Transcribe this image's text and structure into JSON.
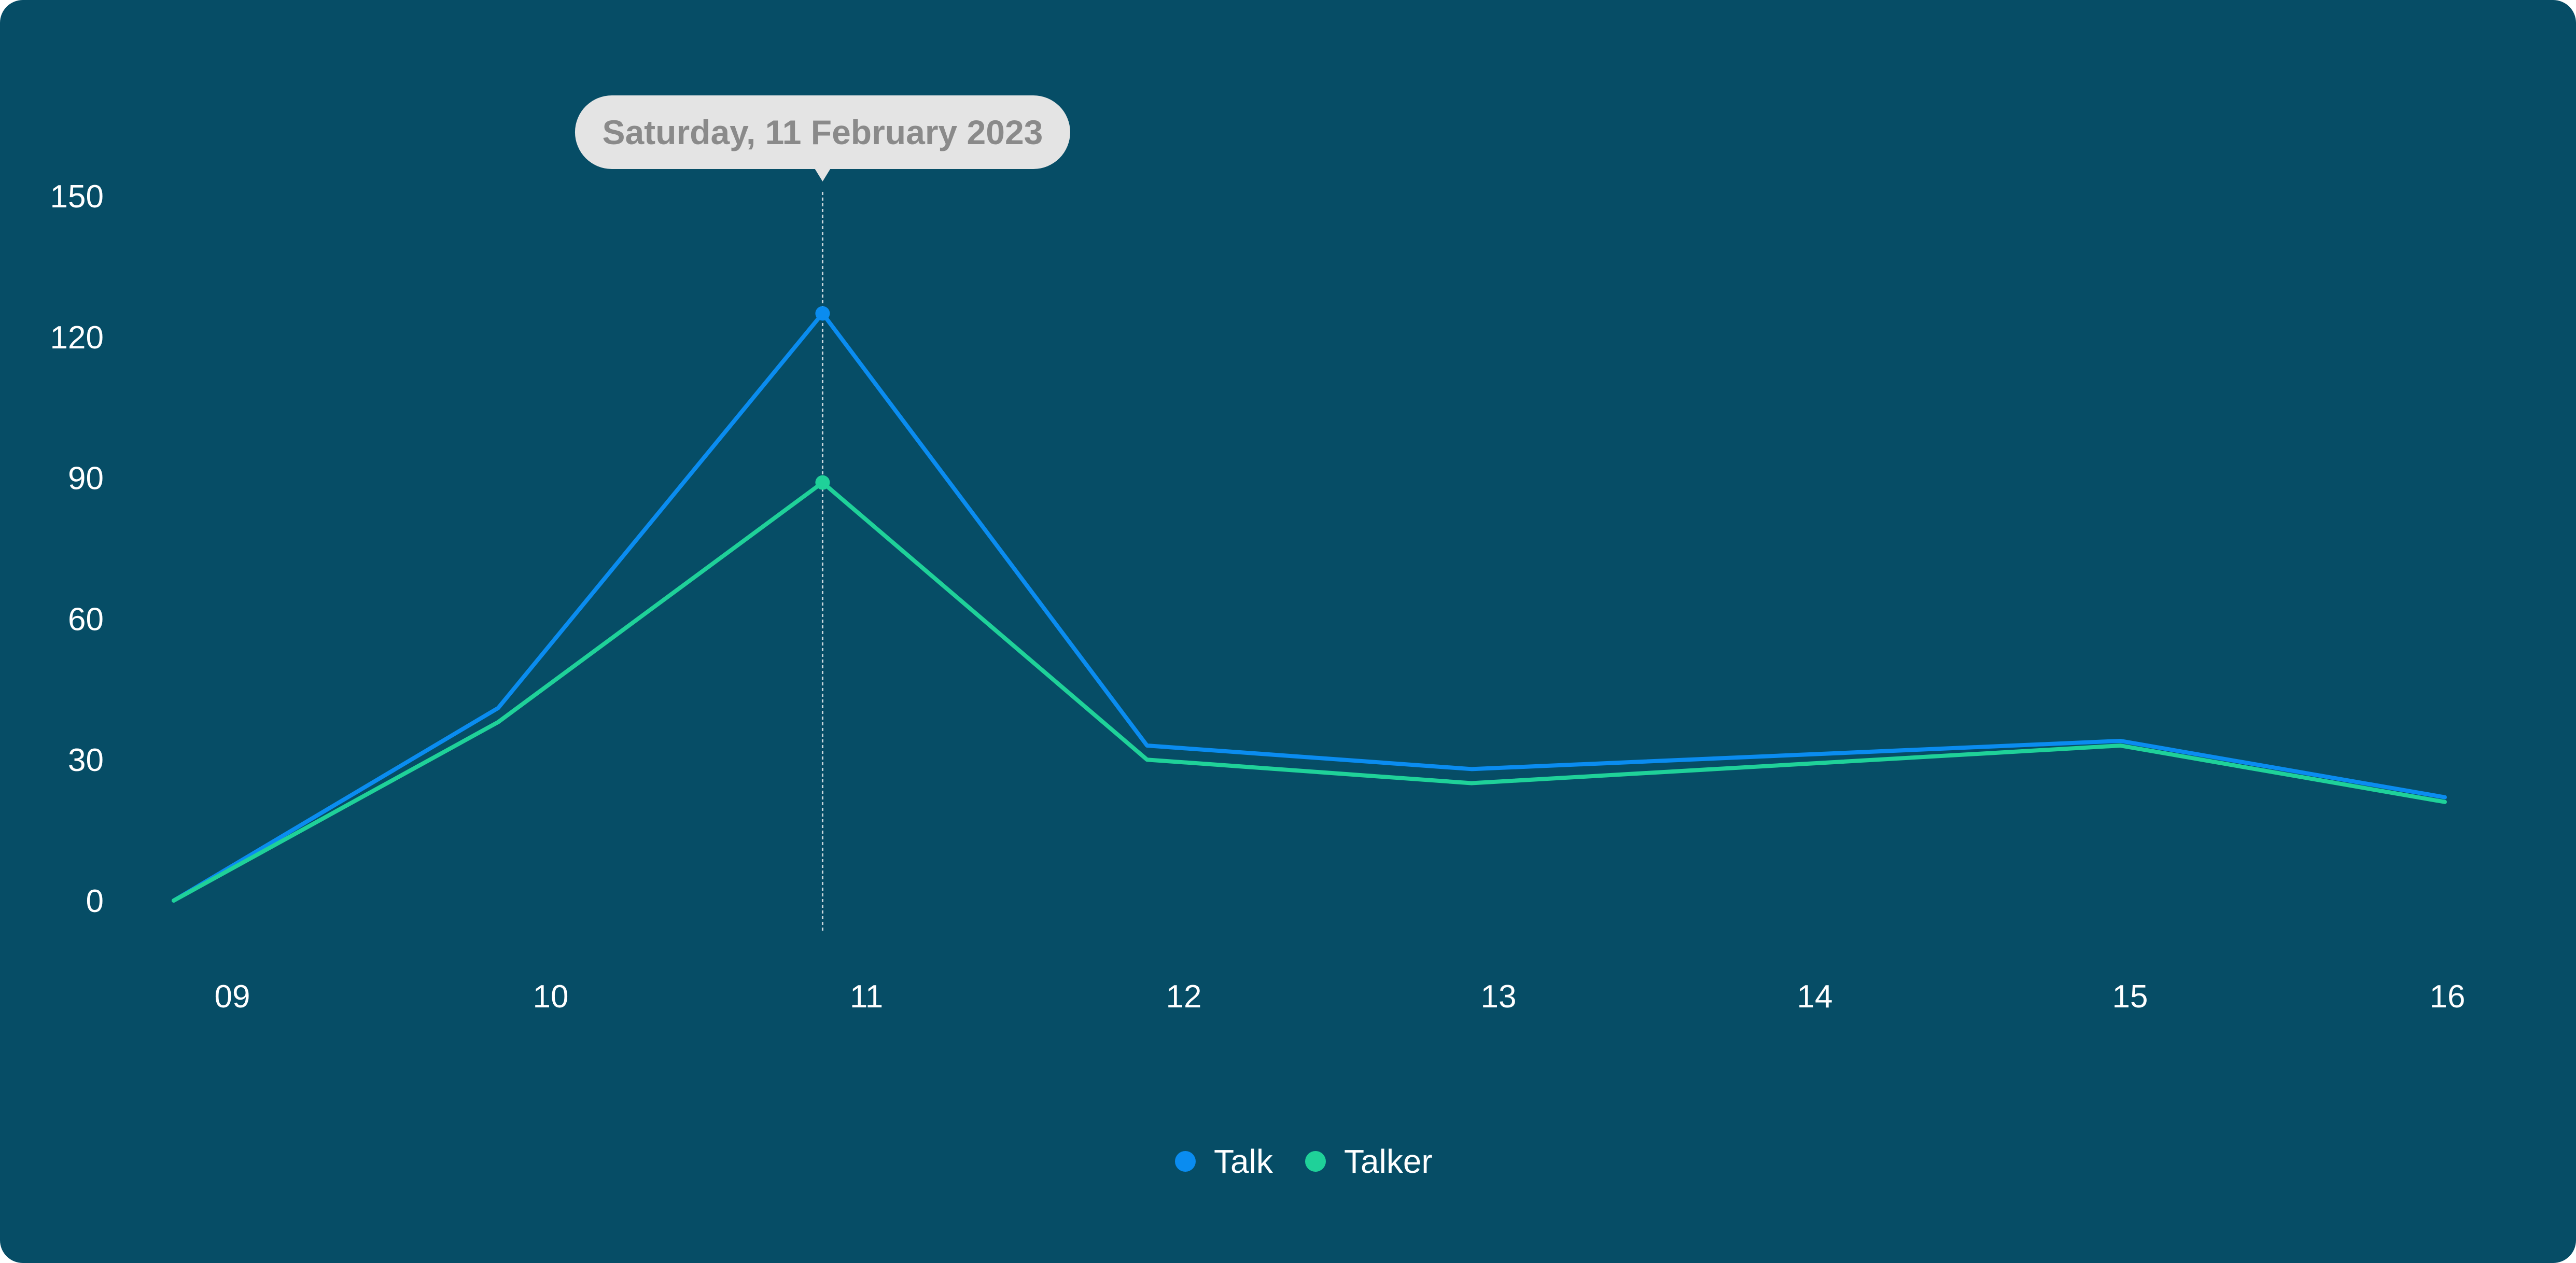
{
  "chart_data": {
    "type": "line",
    "title": "",
    "xlabel": "",
    "ylabel": "",
    "categories": [
      "09",
      "10",
      "11",
      "12",
      "13",
      "14",
      "15",
      "16"
    ],
    "ylim": [
      0,
      150
    ],
    "yticks": [
      "0",
      "30",
      "60",
      "90",
      "120",
      "150"
    ],
    "grid": false,
    "legend_position": "bottom-center",
    "series": [
      {
        "name": "Talk",
        "color": "#0a8cf0",
        "values": [
          0,
          41,
          125,
          33,
          28,
          31,
          34,
          22
        ]
      },
      {
        "name": "Talker",
        "color": "#1fd199",
        "values": [
          0,
          38,
          89,
          30,
          25,
          29,
          33,
          21
        ]
      }
    ],
    "tooltip": {
      "label": "Saturday, 11 February 2023",
      "category": "11"
    }
  }
}
